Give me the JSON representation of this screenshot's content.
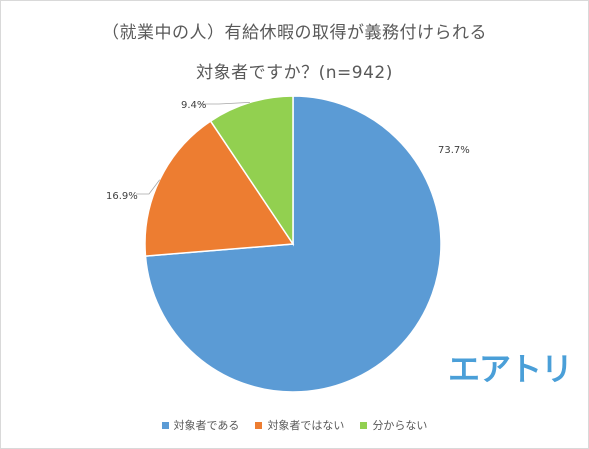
{
  "title_line1": "（就業中の人）有給休暇の取得が義務付けられる",
  "title_line2": "対象者ですか？(n=942)",
  "logo_text": "エアトリ",
  "logo_color": "#4a9fd8",
  "chart_data": {
    "type": "pie",
    "title": "（就業中の人）有給休暇の取得が義務付けられる 対象者ですか？(n=942)",
    "legend_position": "bottom",
    "slices": [
      {
        "label": "対象者である",
        "value": 73.7,
        "display": "73.7%",
        "color": "#5b9bd5"
      },
      {
        "label": "対象者ではない",
        "value": 16.9,
        "display": "16.9%",
        "color": "#ed7d31"
      },
      {
        "label": "分からない",
        "value": 9.4,
        "display": "9.4%",
        "color": "#92d050"
      }
    ]
  }
}
